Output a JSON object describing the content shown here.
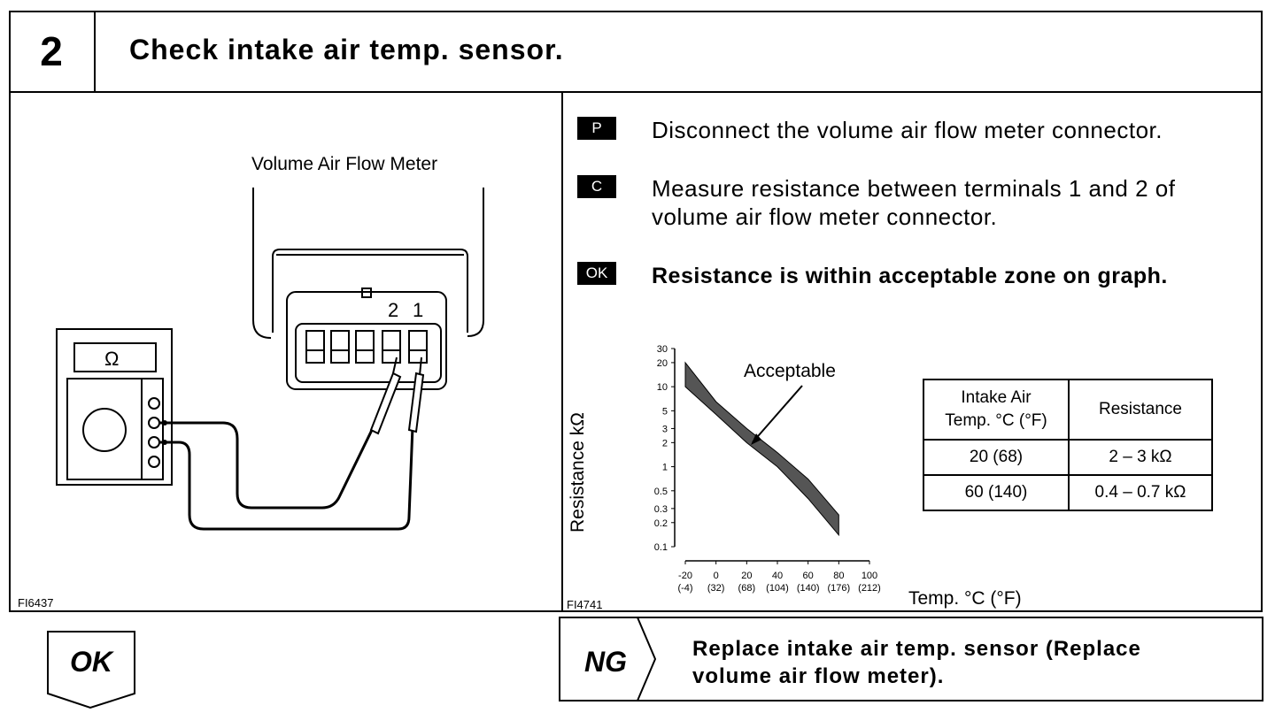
{
  "header": {
    "step_number": "2",
    "title": "Check intake air temp. sensor."
  },
  "diagram": {
    "meter_label": "Volume Air Flow Meter",
    "terminal_2": "2",
    "terminal_1": "1",
    "ohmmeter_symbol": "Ω",
    "figure_id": "FI6437"
  },
  "instructions": [
    {
      "tag": "P",
      "text": "Disconnect the volume air flow meter connector."
    },
    {
      "tag": "C",
      "text_line1": "Measure resistance between terminals 1 and 2 of",
      "text_line2": "volume air flow meter connector."
    },
    {
      "tag": "OK",
      "text": "Resistance is within acceptable zone on graph."
    }
  ],
  "graph": {
    "figure_id": "FI4741",
    "y_axis_label": "Resistance kΩ",
    "x_axis_label": "Temp. °C (°F)",
    "annotation": "Acceptable",
    "y_ticks": [
      "30",
      "20",
      "10",
      "5",
      "3",
      "2",
      "1",
      "0.5",
      "0.3",
      "0.2",
      "0.1"
    ],
    "x_ticks_c": [
      "-20",
      "0",
      "20",
      "40",
      "60",
      "80",
      "100"
    ],
    "x_ticks_f": [
      "(-4)",
      "(32)",
      "(68)",
      "(104)",
      "(140)",
      "(176)",
      "(212)"
    ]
  },
  "chart_data": {
    "type": "area",
    "xlabel": "Temp. °C (°F)",
    "ylabel": "Resistance kΩ",
    "y_scale": "log",
    "ylim": [
      0.1,
      30
    ],
    "xlim": [
      -20,
      100
    ],
    "annotations": [
      "Acceptable"
    ],
    "series": [
      {
        "name": "",
        "x": [
          -20,
          0,
          20,
          40,
          60,
          80
        ],
        "lower": [
          10,
          4.5,
          2,
          1,
          0.4,
          0.14
        ],
        "upper": [
          20,
          6.5,
          3,
          1.5,
          0.7,
          0.25
        ]
      }
    ]
  },
  "spec_table": {
    "col1_line1": "Intake Air",
    "col1_line2": "Temp. °C (°F)",
    "col2_header": "Resistance",
    "rows": [
      {
        "temp": "20 (68)",
        "resistance": "2 – 3 kΩ"
      },
      {
        "temp": "60 (140)",
        "resistance": "0.4 – 0.7 kΩ"
      }
    ]
  },
  "footer": {
    "ok_label": "OK",
    "ng_label": "NG",
    "ng_text_line1": "Replace intake air temp. sensor (Replace",
    "ng_text_line2": "volume air flow meter)."
  }
}
